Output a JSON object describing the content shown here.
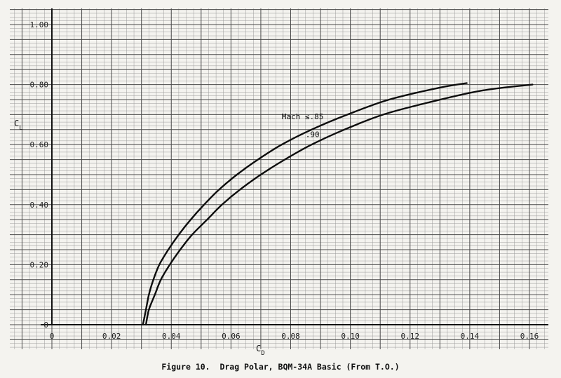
{
  "caption": "Figure 10.  Drag Polar, BQM-34A Basic (From T.O.)",
  "chart_data": {
    "type": "line",
    "title": "Drag Polar, BQM-34A Basic (From T.O.)",
    "xlabel": "C_D",
    "ylabel": "C_L",
    "xlim": [
      0,
      0.16
    ],
    "ylim": [
      0,
      1.0
    ],
    "xticks": [
      0,
      0.02,
      0.04,
      0.06,
      0.08,
      0.1,
      0.12,
      0.14,
      0.16
    ],
    "xtick_labels": [
      "0",
      "0.02",
      "0.04",
      "0.06",
      "0.08",
      "0.10",
      "0.12",
      "0.14",
      "0.16"
    ],
    "yticks": [
      0,
      0.2,
      0.4,
      0.6,
      0.8,
      1.0
    ],
    "ytick_labels": [
      "0",
      "0.20",
      "0.40",
      "0.60",
      "0.80",
      "1.00"
    ],
    "grid": true,
    "series": [
      {
        "name": "Mach ≤.85",
        "points": [
          [
            0.0305,
            0.0
          ],
          [
            0.0315,
            0.05
          ],
          [
            0.0325,
            0.1
          ],
          [
            0.034,
            0.15
          ],
          [
            0.036,
            0.2
          ],
          [
            0.039,
            0.25
          ],
          [
            0.0425,
            0.3
          ],
          [
            0.0465,
            0.35
          ],
          [
            0.051,
            0.4
          ],
          [
            0.056,
            0.45
          ],
          [
            0.062,
            0.5
          ],
          [
            0.069,
            0.55
          ],
          [
            0.077,
            0.6
          ],
          [
            0.087,
            0.65
          ],
          [
            0.099,
            0.7
          ],
          [
            0.113,
            0.75
          ],
          [
            0.13,
            0.79
          ],
          [
            0.139,
            0.805
          ]
        ]
      },
      {
        "name": ".90",
        "points": [
          [
            0.0315,
            0.0
          ],
          [
            0.0325,
            0.05
          ],
          [
            0.0345,
            0.1
          ],
          [
            0.0365,
            0.15
          ],
          [
            0.0395,
            0.2
          ],
          [
            0.043,
            0.25
          ],
          [
            0.047,
            0.3
          ],
          [
            0.052,
            0.35
          ],
          [
            0.057,
            0.4
          ],
          [
            0.063,
            0.45
          ],
          [
            0.07,
            0.5
          ],
          [
            0.078,
            0.55
          ],
          [
            0.087,
            0.6
          ],
          [
            0.098,
            0.65
          ],
          [
            0.111,
            0.7
          ],
          [
            0.126,
            0.74
          ],
          [
            0.144,
            0.78
          ],
          [
            0.161,
            0.8
          ]
        ]
      }
    ],
    "annotations": [
      {
        "text": "Mach ≤.85",
        "x": 0.077,
        "y": 0.685
      },
      {
        "text": ".90",
        "x": 0.085,
        "y": 0.625
      }
    ],
    "axis_label_text": {
      "x_main": "C",
      "x_sub": "D",
      "y_main": "C",
      "y_sub": "L"
    }
  }
}
